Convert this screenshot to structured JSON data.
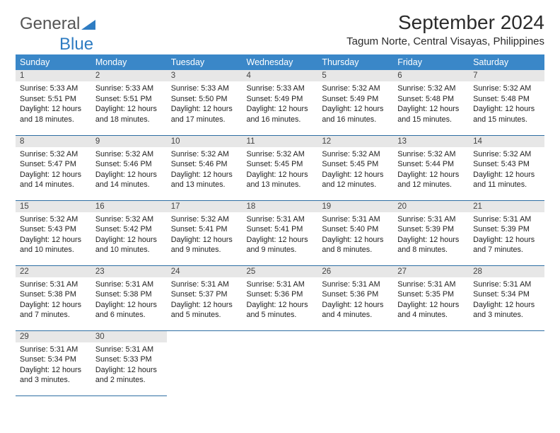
{
  "logo": {
    "text1": "General",
    "text2": "Blue"
  },
  "header": {
    "title": "September 2024",
    "location": "Tagum Norte, Central Visayas, Philippines"
  },
  "style": {
    "header_bg": "#3a87c8",
    "header_fg": "#ffffff",
    "daynum_bg": "#e7e7e7",
    "row_border": "#2e6ea3",
    "page_bg": "#ffffff",
    "body_fontsize": 10.8,
    "title_fontsize": 28
  },
  "columns": [
    "Sunday",
    "Monday",
    "Tuesday",
    "Wednesday",
    "Thursday",
    "Friday",
    "Saturday"
  ],
  "weeks": [
    [
      {
        "n": "1",
        "sr": "5:33 AM",
        "ss": "5:51 PM",
        "dl": "12 hours and 18 minutes."
      },
      {
        "n": "2",
        "sr": "5:33 AM",
        "ss": "5:51 PM",
        "dl": "12 hours and 18 minutes."
      },
      {
        "n": "3",
        "sr": "5:33 AM",
        "ss": "5:50 PM",
        "dl": "12 hours and 17 minutes."
      },
      {
        "n": "4",
        "sr": "5:33 AM",
        "ss": "5:49 PM",
        "dl": "12 hours and 16 minutes."
      },
      {
        "n": "5",
        "sr": "5:32 AM",
        "ss": "5:49 PM",
        "dl": "12 hours and 16 minutes."
      },
      {
        "n": "6",
        "sr": "5:32 AM",
        "ss": "5:48 PM",
        "dl": "12 hours and 15 minutes."
      },
      {
        "n": "7",
        "sr": "5:32 AM",
        "ss": "5:48 PM",
        "dl": "12 hours and 15 minutes."
      }
    ],
    [
      {
        "n": "8",
        "sr": "5:32 AM",
        "ss": "5:47 PM",
        "dl": "12 hours and 14 minutes."
      },
      {
        "n": "9",
        "sr": "5:32 AM",
        "ss": "5:46 PM",
        "dl": "12 hours and 14 minutes."
      },
      {
        "n": "10",
        "sr": "5:32 AM",
        "ss": "5:46 PM",
        "dl": "12 hours and 13 minutes."
      },
      {
        "n": "11",
        "sr": "5:32 AM",
        "ss": "5:45 PM",
        "dl": "12 hours and 13 minutes."
      },
      {
        "n": "12",
        "sr": "5:32 AM",
        "ss": "5:45 PM",
        "dl": "12 hours and 12 minutes."
      },
      {
        "n": "13",
        "sr": "5:32 AM",
        "ss": "5:44 PM",
        "dl": "12 hours and 12 minutes."
      },
      {
        "n": "14",
        "sr": "5:32 AM",
        "ss": "5:43 PM",
        "dl": "12 hours and 11 minutes."
      }
    ],
    [
      {
        "n": "15",
        "sr": "5:32 AM",
        "ss": "5:43 PM",
        "dl": "12 hours and 10 minutes."
      },
      {
        "n": "16",
        "sr": "5:32 AM",
        "ss": "5:42 PM",
        "dl": "12 hours and 10 minutes."
      },
      {
        "n": "17",
        "sr": "5:32 AM",
        "ss": "5:41 PM",
        "dl": "12 hours and 9 minutes."
      },
      {
        "n": "18",
        "sr": "5:31 AM",
        "ss": "5:41 PM",
        "dl": "12 hours and 9 minutes."
      },
      {
        "n": "19",
        "sr": "5:31 AM",
        "ss": "5:40 PM",
        "dl": "12 hours and 8 minutes."
      },
      {
        "n": "20",
        "sr": "5:31 AM",
        "ss": "5:39 PM",
        "dl": "12 hours and 8 minutes."
      },
      {
        "n": "21",
        "sr": "5:31 AM",
        "ss": "5:39 PM",
        "dl": "12 hours and 7 minutes."
      }
    ],
    [
      {
        "n": "22",
        "sr": "5:31 AM",
        "ss": "5:38 PM",
        "dl": "12 hours and 7 minutes."
      },
      {
        "n": "23",
        "sr": "5:31 AM",
        "ss": "5:38 PM",
        "dl": "12 hours and 6 minutes."
      },
      {
        "n": "24",
        "sr": "5:31 AM",
        "ss": "5:37 PM",
        "dl": "12 hours and 5 minutes."
      },
      {
        "n": "25",
        "sr": "5:31 AM",
        "ss": "5:36 PM",
        "dl": "12 hours and 5 minutes."
      },
      {
        "n": "26",
        "sr": "5:31 AM",
        "ss": "5:36 PM",
        "dl": "12 hours and 4 minutes."
      },
      {
        "n": "27",
        "sr": "5:31 AM",
        "ss": "5:35 PM",
        "dl": "12 hours and 4 minutes."
      },
      {
        "n": "28",
        "sr": "5:31 AM",
        "ss": "5:34 PM",
        "dl": "12 hours and 3 minutes."
      }
    ],
    [
      {
        "n": "29",
        "sr": "5:31 AM",
        "ss": "5:34 PM",
        "dl": "12 hours and 3 minutes."
      },
      {
        "n": "30",
        "sr": "5:31 AM",
        "ss": "5:33 PM",
        "dl": "12 hours and 2 minutes."
      },
      null,
      null,
      null,
      null,
      null
    ]
  ],
  "labels": {
    "sunrise": "Sunrise: ",
    "sunset": "Sunset: ",
    "daylight": "Daylight: "
  }
}
